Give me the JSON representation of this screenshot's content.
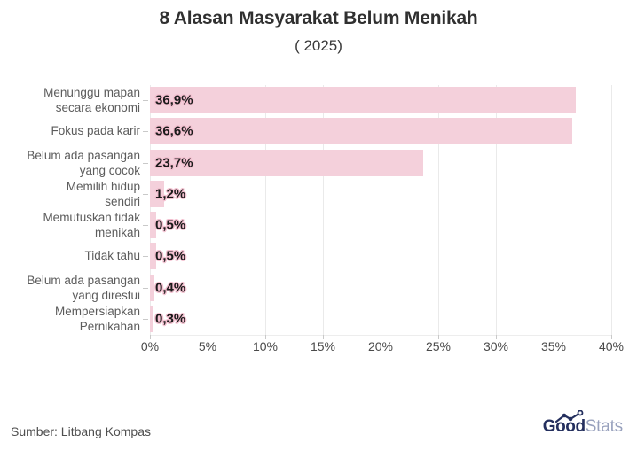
{
  "chart_data": {
    "type": "bar",
    "orientation": "horizontal",
    "title": "8 Alasan Masyarakat Belum Menikah",
    "subtitle": "( 2025)",
    "categories": [
      "Menunggu mapan\nsecara ekonomi",
      "Fokus pada karir",
      "Belum ada pasangan\nyang cocok",
      "Memilih hidup\nsendiri",
      "Memutuskan tidak\nmenikah",
      "Tidak tahu",
      "Belum ada pasangan\nyang direstui",
      "Mempersiapkan\nPernikahan"
    ],
    "values": [
      36.9,
      36.6,
      23.7,
      1.2,
      0.5,
      0.5,
      0.4,
      0.3
    ],
    "value_labels": [
      "36,9%",
      "36,6%",
      "23,7%",
      "1,2%",
      "0,5%",
      "0,5%",
      "0,4%",
      "0,3%"
    ],
    "xlabel": "",
    "ylabel": "",
    "xlim": [
      0,
      40
    ],
    "x_ticks": [
      "0%",
      "5%",
      "10%",
      "15%",
      "20%",
      "25%",
      "30%",
      "35%",
      "40%"
    ],
    "grid": "vertical",
    "legend": "none",
    "bar_color": "#f4d0db",
    "value_halo_color": "#f3c0d0"
  },
  "footer": {
    "source": "Sumber: Litbang Kompas",
    "logo_bold": "Good",
    "logo_light": "Stats"
  },
  "colors": {
    "background": "#ffffff",
    "title_text": "#303030",
    "category_label": "#5c5c5c",
    "axis_label": "#4a4a4a",
    "gridline": "#eaeaea",
    "tick_mark": "#c9c9c9",
    "source_text": "#4f4f4f",
    "logo_navy": "#242f5e",
    "logo_gray": "#98a1bd"
  }
}
